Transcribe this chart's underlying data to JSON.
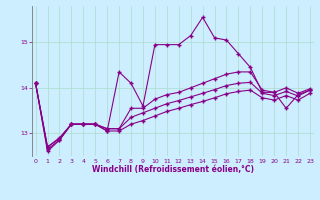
{
  "xlabel": "Windchill (Refroidissement éolien,°C)",
  "background_color": "#cceeff",
  "grid_color": "#aaddcc",
  "line_color": "#880088",
  "x": [
    0,
    1,
    2,
    3,
    4,
    5,
    6,
    7,
    8,
    9,
    10,
    11,
    12,
    13,
    14,
    15,
    16,
    17,
    18,
    19,
    20,
    21,
    22,
    23
  ],
  "series1": [
    14.1,
    12.6,
    12.85,
    13.2,
    13.2,
    13.2,
    13.05,
    14.35,
    14.1,
    13.6,
    14.95,
    14.95,
    14.95,
    15.15,
    15.55,
    15.1,
    15.05,
    14.75,
    14.45,
    13.9,
    13.9,
    13.55,
    13.85,
    13.95
  ],
  "series2": [
    14.1,
    12.7,
    12.9,
    13.2,
    13.2,
    13.2,
    13.1,
    13.1,
    13.55,
    13.55,
    13.75,
    13.85,
    13.9,
    14.0,
    14.1,
    14.2,
    14.3,
    14.35,
    14.35,
    13.95,
    13.9,
    14.0,
    13.88,
    13.98
  ],
  "series3": [
    14.1,
    12.7,
    12.88,
    13.2,
    13.2,
    13.2,
    13.1,
    13.1,
    13.35,
    13.45,
    13.55,
    13.65,
    13.72,
    13.8,
    13.88,
    13.96,
    14.05,
    14.1,
    14.12,
    13.88,
    13.83,
    13.92,
    13.82,
    13.95
  ],
  "series4": [
    14.1,
    12.65,
    12.85,
    13.2,
    13.2,
    13.2,
    13.05,
    13.05,
    13.2,
    13.28,
    13.38,
    13.48,
    13.55,
    13.63,
    13.7,
    13.78,
    13.87,
    13.92,
    13.95,
    13.78,
    13.73,
    13.83,
    13.73,
    13.88
  ],
  "ylim": [
    12.5,
    15.8
  ],
  "yticks": [
    13,
    14,
    15
  ],
  "xticks": [
    0,
    1,
    2,
    3,
    4,
    5,
    6,
    7,
    8,
    9,
    10,
    11,
    12,
    13,
    14,
    15,
    16,
    17,
    18,
    19,
    20,
    21,
    22,
    23
  ],
  "xlim": [
    -0.3,
    23.3
  ]
}
